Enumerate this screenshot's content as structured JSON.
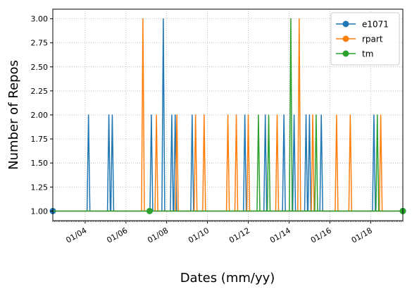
{
  "chart_data": {
    "type": "line",
    "title": "",
    "xlabel": "Dates (mm/yy)",
    "ylabel": "Number of Repos",
    "x_axis": {
      "type": "date",
      "range": [
        "2002-06-01",
        "2019-08-01"
      ],
      "ticks": [
        {
          "date": "2004-01-01",
          "label": "01/04"
        },
        {
          "date": "2006-01-01",
          "label": "01/06"
        },
        {
          "date": "2008-01-01",
          "label": "01/08"
        },
        {
          "date": "2010-01-01",
          "label": "01/10"
        },
        {
          "date": "2012-01-01",
          "label": "01/12"
        },
        {
          "date": "2014-01-01",
          "label": "01/14"
        },
        {
          "date": "2016-01-01",
          "label": "01/16"
        },
        {
          "date": "2018-01-01",
          "label": "01/18"
        }
      ]
    },
    "y_axis": {
      "range": [
        0.9,
        3.1
      ],
      "ticks": [
        "1.00",
        "1.25",
        "1.50",
        "1.75",
        "2.00",
        "2.25",
        "2.50",
        "2.75",
        "3.00"
      ]
    },
    "grid": true,
    "grid_style": "dotted",
    "legend_position": "top-right",
    "series": [
      {
        "name": "e1071",
        "color": "#1f77b4",
        "marker_points": [
          {
            "x": "2002-06-01",
            "y": 1
          },
          {
            "x": "2019-08-01",
            "y": 1
          }
        ],
        "spikes": [
          {
            "x": "2004-03-01",
            "y": 2
          },
          {
            "x": "2005-03-01",
            "y": 2
          },
          {
            "x": "2005-05-01",
            "y": 2
          },
          {
            "x": "2007-04-01",
            "y": 2
          },
          {
            "x": "2007-11-01",
            "y": 3
          },
          {
            "x": "2008-04-01",
            "y": 2
          },
          {
            "x": "2008-06-01",
            "y": 2
          },
          {
            "x": "2009-04-01",
            "y": 2
          },
          {
            "x": "2011-11-01",
            "y": 2
          },
          {
            "x": "2012-11-01",
            "y": 2
          },
          {
            "x": "2013-10-01",
            "y": 2
          },
          {
            "x": "2014-04-01",
            "y": 2
          },
          {
            "x": "2014-11-01",
            "y": 2
          },
          {
            "x": "2015-01-01",
            "y": 2
          },
          {
            "x": "2015-08-01",
            "y": 2
          },
          {
            "x": "2018-03-01",
            "y": 2
          }
        ]
      },
      {
        "name": "rpart",
        "color": "#ff7f0e",
        "marker_points": [],
        "spikes": [
          {
            "x": "2006-11-01",
            "y": 3
          },
          {
            "x": "2007-07-01",
            "y": 2
          },
          {
            "x": "2008-07-01",
            "y": 2
          },
          {
            "x": "2009-06-01",
            "y": 2
          },
          {
            "x": "2009-11-01",
            "y": 2
          },
          {
            "x": "2011-01-01",
            "y": 2
          },
          {
            "x": "2011-06-01",
            "y": 2
          },
          {
            "x": "2012-01-01",
            "y": 2
          },
          {
            "x": "2013-06-01",
            "y": 2
          },
          {
            "x": "2014-07-01",
            "y": 3
          },
          {
            "x": "2015-03-01",
            "y": 2
          },
          {
            "x": "2016-05-01",
            "y": 2
          },
          {
            "x": "2017-01-01",
            "y": 2
          },
          {
            "x": "2018-07-01",
            "y": 2
          }
        ]
      },
      {
        "name": "tm",
        "color": "#2ca02c",
        "marker_points": [
          {
            "x": "2007-03-01",
            "y": 1
          },
          {
            "x": "2019-08-01",
            "y": 1
          }
        ],
        "spikes": [
          {
            "x": "2012-07-01",
            "y": 2
          },
          {
            "x": "2013-01-01",
            "y": 2
          },
          {
            "x": "2014-02-01",
            "y": 3
          },
          {
            "x": "2015-05-01",
            "y": 2
          },
          {
            "x": "2018-05-01",
            "y": 2
          }
        ]
      }
    ]
  }
}
